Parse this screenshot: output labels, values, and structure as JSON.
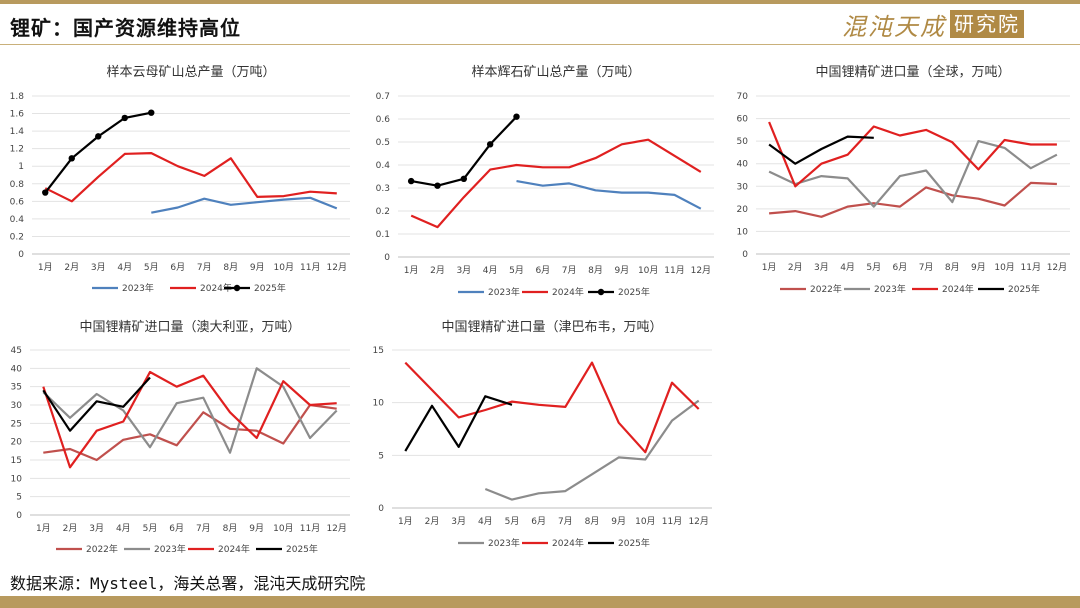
{
  "header": {
    "title": "锂矿：国产资源维持高位",
    "logo_a": "混沌天成",
    "logo_b": "研究院"
  },
  "footer": {
    "source": "数据来源：Mysteel，海关总署，混沌天成研究院"
  },
  "colors": {
    "2022": "#c0504d",
    "2023_blue": "#4f81bd",
    "2023_gray": "#8c8c8c",
    "2024": "#e02020",
    "2025": "#000000",
    "accent": "#b89a5e"
  },
  "chart_data": [
    {
      "type": "line",
      "title": "样本云母矿山总产量（万吨）",
      "categories": [
        "1月",
        "2月",
        "3月",
        "4月",
        "5月",
        "6月",
        "7月",
        "8月",
        "9月",
        "10月",
        "11月",
        "12月"
      ],
      "ylim": [
        0,
        1.8
      ],
      "yticks": [
        "0",
        "0.2",
        "0.4",
        "0.6",
        "0.8",
        "1",
        "1.2",
        "1.4",
        "1.6",
        "1.8"
      ],
      "legend_position": "bottom",
      "series": [
        {
          "name": "2023年",
          "color": "#4f81bd",
          "markers": false,
          "values": [
            null,
            null,
            null,
            null,
            0.47,
            0.53,
            0.63,
            0.56,
            0.59,
            0.62,
            0.64,
            0.52
          ]
        },
        {
          "name": "2024年",
          "color": "#e02020",
          "markers": false,
          "values": [
            0.75,
            0.6,
            0.88,
            1.14,
            1.15,
            1.0,
            0.89,
            1.09,
            0.65,
            0.66,
            0.71,
            0.69
          ]
        },
        {
          "name": "2025年",
          "color": "#000000",
          "markers": true,
          "values": [
            0.7,
            1.09,
            1.34,
            1.55,
            1.61,
            null,
            null,
            null,
            null,
            null,
            null,
            null
          ]
        }
      ]
    },
    {
      "type": "line",
      "title": "样本辉石矿山总产量（万吨）",
      "categories": [
        "1月",
        "2月",
        "3月",
        "4月",
        "5月",
        "6月",
        "7月",
        "8月",
        "9月",
        "10月",
        "11月",
        "12月"
      ],
      "ylim": [
        0,
        0.7
      ],
      "yticks": [
        "0",
        "0.1",
        "0.2",
        "0.3",
        "0.4",
        "0.5",
        "0.6",
        "0.7"
      ],
      "legend_position": "bottom",
      "series": [
        {
          "name": "2023年",
          "color": "#4f81bd",
          "markers": false,
          "values": [
            null,
            null,
            null,
            null,
            0.33,
            0.31,
            0.32,
            0.29,
            0.28,
            0.28,
            0.27,
            0.21
          ]
        },
        {
          "name": "2024年",
          "color": "#e02020",
          "markers": false,
          "values": [
            0.18,
            0.13,
            0.26,
            0.38,
            0.4,
            0.39,
            0.39,
            0.43,
            0.49,
            0.51,
            0.44,
            0.37
          ]
        },
        {
          "name": "2025年",
          "color": "#000000",
          "markers": true,
          "values": [
            0.33,
            0.31,
            0.34,
            0.49,
            0.61,
            null,
            null,
            null,
            null,
            null,
            null,
            null
          ]
        }
      ]
    },
    {
      "type": "line",
      "title": "中国锂精矿进口量（全球，万吨）",
      "categories": [
        "1月",
        "2月",
        "3月",
        "4月",
        "5月",
        "6月",
        "7月",
        "8月",
        "9月",
        "10月",
        "11月",
        "12月"
      ],
      "ylim": [
        0,
        70
      ],
      "yticks": [
        "0",
        "10",
        "20",
        "30",
        "40",
        "50",
        "60",
        "70"
      ],
      "legend_position": "bottom",
      "series": [
        {
          "name": "2022年",
          "color": "#c0504d",
          "markers": false,
          "values": [
            18,
            19,
            16.5,
            21,
            22.5,
            21,
            29.5,
            26,
            24.5,
            21.5,
            31.5,
            31
          ]
        },
        {
          "name": "2023年",
          "color": "#8c8c8c",
          "markers": false,
          "values": [
            36.5,
            31,
            34.5,
            33.5,
            21,
            34.5,
            37,
            23,
            50,
            47,
            38,
            44
          ]
        },
        {
          "name": "2024年",
          "color": "#e02020",
          "markers": false,
          "values": [
            58.5,
            30,
            40,
            44,
            56.5,
            52.5,
            55,
            49.5,
            37.5,
            50.5,
            48.5,
            48.5
          ]
        },
        {
          "name": "2025年",
          "color": "#000000",
          "markers": false,
          "values": [
            48.5,
            40,
            46.5,
            52,
            51.5,
            null,
            null,
            null,
            null,
            null,
            null,
            null
          ]
        }
      ]
    },
    {
      "type": "line",
      "title": "中国锂精矿进口量（澳大利亚，万吨）",
      "categories": [
        "1月",
        "2月",
        "3月",
        "4月",
        "5月",
        "6月",
        "7月",
        "8月",
        "9月",
        "10月",
        "11月",
        "12月"
      ],
      "ylim": [
        0,
        45
      ],
      "yticks": [
        "0",
        "5",
        "10",
        "15",
        "20",
        "25",
        "30",
        "35",
        "40",
        "45"
      ],
      "legend_position": "bottom",
      "series": [
        {
          "name": "2022年",
          "color": "#c0504d",
          "markers": false,
          "values": [
            17,
            18,
            15,
            20.5,
            22,
            19,
            28,
            23.5,
            23,
            19.5,
            30,
            29
          ]
        },
        {
          "name": "2023年",
          "color": "#8c8c8c",
          "markers": false,
          "values": [
            33.5,
            26.5,
            33,
            28.5,
            18.5,
            30.5,
            32,
            17,
            40,
            35,
            21,
            28.5
          ]
        },
        {
          "name": "2024年",
          "color": "#e02020",
          "markers": false,
          "values": [
            35,
            13,
            23,
            25.5,
            39,
            35,
            38,
            28,
            21,
            36.5,
            30,
            30.5
          ]
        },
        {
          "name": "2025年",
          "color": "#000000",
          "markers": false,
          "values": [
            34,
            23,
            31,
            29.5,
            37.5,
            null,
            null,
            null,
            null,
            null,
            null,
            null
          ]
        }
      ]
    },
    {
      "type": "line",
      "title": "中国锂精矿进口量（津巴布韦，万吨）",
      "categories": [
        "1月",
        "2月",
        "3月",
        "4月",
        "5月",
        "6月",
        "7月",
        "8月",
        "9月",
        "10月",
        "11月",
        "12月"
      ],
      "ylim": [
        0,
        15
      ],
      "yticks": [
        "0",
        "5",
        "10",
        "15"
      ],
      "legend_position": "bottom",
      "series": [
        {
          "name": "2023年",
          "color": "#8c8c8c",
          "markers": false,
          "values": [
            null,
            null,
            null,
            1.8,
            0.8,
            1.4,
            1.6,
            3.2,
            4.8,
            4.6,
            8.3,
            10.2
          ]
        },
        {
          "name": "2024年",
          "color": "#e02020",
          "markers": false,
          "values": [
            13.8,
            11.2,
            8.6,
            9.3,
            10.1,
            9.8,
            9.6,
            13.8,
            8.1,
            5.3,
            11.9,
            9.4
          ]
        },
        {
          "name": "2025年",
          "color": "#000000",
          "markers": false,
          "values": [
            5.4,
            9.7,
            5.8,
            10.6,
            9.8,
            null,
            null,
            null,
            null,
            null,
            null,
            null
          ]
        }
      ]
    }
  ]
}
